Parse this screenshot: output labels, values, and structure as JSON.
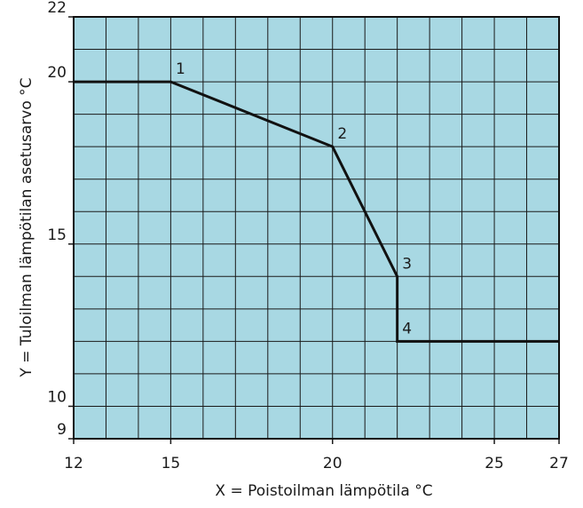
{
  "chart_data": {
    "type": "line",
    "xlabel": "X = Poistoilman lämpötila °C",
    "ylabel": "Y = Tuloilman lämpötilan asetusarvo  °C",
    "x": [
      12,
      15,
      20,
      22,
      22,
      27
    ],
    "series": [
      {
        "color": "#111111",
        "values": [
          20,
          20,
          18,
          14,
          12,
          12
        ]
      }
    ],
    "point_labels": [
      null,
      "1",
      "2",
      "3",
      "4",
      null
    ],
    "xlim": [
      12,
      27
    ],
    "ylim": [
      9,
      22
    ],
    "xticks": [
      12,
      15,
      20,
      25,
      27
    ],
    "yticks": [
      9,
      10,
      15,
      20,
      22
    ],
    "grid": true,
    "grid_step": 1,
    "background": "#a8d8e3"
  }
}
